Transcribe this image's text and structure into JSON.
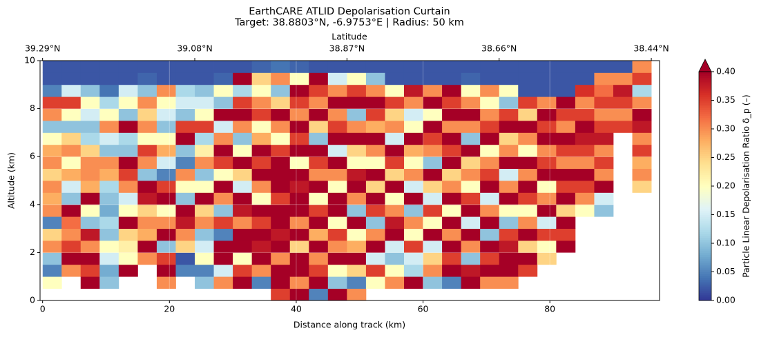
{
  "chart_data": {
    "type": "heatmap",
    "title": "EarthCARE ATLID Depolarisation Curtain",
    "subtitle": "Target: 38.8803°N, -6.9753°E | Radius: 50 km",
    "x_label": "Distance along track (km)",
    "y_label": "Altitude (km)",
    "x2_label": "Latitude",
    "colorbar_label": "Particle Linear Depolarisation Ratio δ_p (–)",
    "xlim": [
      -0.4,
      97.3
    ],
    "ylim": [
      0,
      10
    ],
    "xticks": [
      0,
      20,
      40,
      60,
      80
    ],
    "yticks": [
      0,
      2,
      4,
      6,
      8,
      10
    ],
    "x2ticks": [
      {
        "value": 0,
        "label": "39.29°N"
      },
      {
        "value": 24,
        "label": "39.08°N"
      },
      {
        "value": 48,
        "label": "38.87°N"
      },
      {
        "value": 72,
        "label": "38.66°N"
      },
      {
        "value": 96,
        "label": "38.44°N"
      }
    ],
    "clim": [
      0,
      0.4
    ],
    "cticks": [
      {
        "value": 0,
        "label": "0.00"
      },
      {
        "value": 0.05,
        "label": "0.05"
      },
      {
        "value": 0.1,
        "label": "0.10"
      },
      {
        "value": 0.15,
        "label": "0.15"
      },
      {
        "value": 0.2,
        "label": "0.20"
      },
      {
        "value": 0.25,
        "label": "0.25"
      },
      {
        "value": 0.3,
        "label": "0.30"
      },
      {
        "value": 0.35,
        "label": "0.35"
      },
      {
        "value": 0.4,
        "label": "0.40"
      }
    ],
    "colormap": [
      "#313695",
      "#4575b4",
      "#74add1",
      "#abd9e9",
      "#e0f3f8",
      "#ffffbf",
      "#fee090",
      "#fdae61",
      "#f46d43",
      "#d73027",
      "#a50026"
    ],
    "grid": true,
    "xbins": [
      0,
      3,
      6,
      9,
      12,
      15,
      18,
      21,
      24,
      27,
      30,
      33,
      36,
      39,
      42,
      45,
      48,
      51,
      54,
      57,
      60,
      63,
      66,
      69,
      72,
      75,
      78,
      81,
      84,
      87,
      90,
      93,
      96
    ],
    "ybins": [
      0,
      0.5,
      1,
      1.5,
      2,
      2.5,
      3,
      3.5,
      4,
      4.5,
      5,
      5.5,
      6,
      6.5,
      7,
      7.5,
      8,
      8.5,
      9,
      9.5,
      10
    ],
    "z": [
      [
        null,
        0.2,
        0.05,
        0.1,
        0.3,
        0.25,
        0.05,
        0.3,
        0.28,
        0.3,
        0.25,
        0.3,
        0.28,
        0.2,
        0.1,
        0.3,
        0.35,
        0.05,
        0.02,
        0.02
      ],
      [
        null,
        null,
        0.3,
        0.4,
        0.35,
        0.3,
        0.32,
        0.4,
        0.1,
        0.15,
        0.28,
        0.2,
        0.3,
        0.25,
        0.1,
        0.2,
        0.35,
        0.15,
        0.02,
        0.02
      ],
      [
        null,
        0.4,
        0.35,
        0.4,
        0.3,
        0.38,
        0.1,
        0.2,
        0.4,
        0.28,
        0.3,
        0.3,
        0.25,
        0.12,
        0.1,
        0.15,
        0.2,
        0.1,
        0.02,
        0.02
      ],
      [
        null,
        0.1,
        0.08,
        0.15,
        0.2,
        0.1,
        0.12,
        0.08,
        0.1,
        0.12,
        0.28,
        0.3,
        0.1,
        0.15,
        0.3,
        0.2,
        0.12,
        0.04,
        0.02,
        0.02
      ],
      [
        null,
        null,
        0.4,
        0.2,
        0.22,
        0.25,
        0.4,
        0.2,
        0.15,
        0.3,
        0.35,
        0.4,
        0.1,
        0.12,
        0.4,
        0.1,
        0.2,
        0.15,
        0.02,
        0.02
      ],
      [
        null,
        null,
        null,
        0.3,
        0.4,
        0.28,
        0.3,
        0.25,
        0.38,
        0.4,
        0.1,
        0.3,
        0.35,
        0.2,
        0.3,
        0.25,
        0.3,
        0.1,
        0.03,
        0.02
      ],
      [
        null,
        0.3,
        0.4,
        0.35,
        0.1,
        0.4,
        0.3,
        0.2,
        0.4,
        0.35,
        0.05,
        0.15,
        0.28,
        0.2,
        0.1,
        0.15,
        0.2,
        0.3,
        0.02,
        0.02
      ],
      [
        null,
        null,
        0.05,
        0.02,
        0.25,
        0.3,
        0.38,
        0.4,
        0.1,
        0.2,
        0.3,
        0.05,
        0.1,
        0.4,
        0.35,
        0.1,
        0.15,
        0.12,
        0.02,
        0.02
      ],
      [
        null,
        0.1,
        0.05,
        0.2,
        0.15,
        0.1,
        0.3,
        0.25,
        0.4,
        0.2,
        0.1,
        0.3,
        0.22,
        0.12,
        0.35,
        0.2,
        0.15,
        0.1,
        0.02,
        0.02
      ],
      [
        null,
        0.3,
        0.15,
        0.4,
        0.4,
        0.05,
        0.35,
        0.1,
        0.3,
        0.4,
        0.2,
        0.35,
        0.4,
        0.3,
        0.15,
        0.4,
        0.1,
        0.2,
        0.03,
        0.02
      ],
      [
        null,
        0.4,
        0.35,
        0.2,
        0.4,
        0.4,
        0.3,
        0.38,
        0.4,
        0.15,
        0.25,
        0.4,
        0.2,
        0.1,
        0.3,
        0.4,
        0.35,
        0.12,
        0.4,
        0.02
      ],
      [
        null,
        0.05,
        0.3,
        0.4,
        0.38,
        0.4,
        0.35,
        0.4,
        0.2,
        0.3,
        0.4,
        0.35,
        0.4,
        0.28,
        0.2,
        0.35,
        0.3,
        0.2,
        0.25,
        0.03
      ],
      [
        0.35,
        0.4,
        0.4,
        0.3,
        0.4,
        0.38,
        0.4,
        0.4,
        0.35,
        0.4,
        0.4,
        0.4,
        0.35,
        0.2,
        0.3,
        0.4,
        0.25,
        0.1,
        0.3,
        0.04
      ],
      [
        0.4,
        0.3,
        0.4,
        0.4,
        0.25,
        0.4,
        0.3,
        0.4,
        0.4,
        0.38,
        0.4,
        0.2,
        0.4,
        0.35,
        0.4,
        0.3,
        0.35,
        0.4,
        0.2,
        0.03
      ],
      [
        0.05,
        0.4,
        0.35,
        0.3,
        0.4,
        0.28,
        0.4,
        0.35,
        0.2,
        0.4,
        0.3,
        0.35,
        0.4,
        0.1,
        0.25,
        0.4,
        0.3,
        0.35,
        0.4,
        0.02
      ],
      [
        0.4,
        0.1,
        0.2,
        0.4,
        0.3,
        0.35,
        0.2,
        0.4,
        0.4,
        0.2,
        0.3,
        0.4,
        0.15,
        0.4,
        0.35,
        0.3,
        0.4,
        0.3,
        0.15,
        0.02
      ],
      [
        0.3,
        0.05,
        0.25,
        0.4,
        0.28,
        0.2,
        0.4,
        0.1,
        0.3,
        0.4,
        0.38,
        0.2,
        0.25,
        0.4,
        0.3,
        0.1,
        0.4,
        0.35,
        0.2,
        0.02
      ],
      [
        null,
        0.2,
        0.35,
        0.15,
        0.4,
        0.3,
        0.1,
        0.35,
        0.4,
        0.25,
        0.4,
        0.2,
        0.3,
        0.4,
        0.28,
        0.35,
        0.4,
        0.3,
        0.1,
        0.02
      ],
      [
        null,
        0.3,
        0.2,
        0.1,
        0.15,
        0.4,
        0.38,
        0.3,
        0.2,
        0.4,
        0.25,
        0.35,
        0.4,
        0.15,
        0.3,
        0.25,
        0.35,
        0.2,
        0.02,
        0.02
      ],
      [
        null,
        0.4,
        0.12,
        0.15,
        0.35,
        0.2,
        0.3,
        0.1,
        0.4,
        0.15,
        0.3,
        0.2,
        0.28,
        0.4,
        0.2,
        0.15,
        0.3,
        0.38,
        0.02,
        0.02
      ],
      [
        null,
        0.1,
        0.3,
        0.25,
        0.15,
        0.4,
        0.2,
        0.35,
        0.15,
        0.25,
        0.4,
        0.1,
        0.3,
        0.35,
        0.4,
        0.2,
        0.4,
        0.3,
        0.02,
        0.02
      ],
      [
        null,
        0.05,
        0.4,
        0.35,
        0.4,
        0.3,
        0.4,
        0.2,
        0.4,
        0.3,
        0.25,
        0.4,
        0.35,
        0.4,
        0.3,
        0.4,
        0.35,
        0.4,
        0.02,
        0.02
      ],
      [
        null,
        0.4,
        0.38,
        0.1,
        0.3,
        0.4,
        0.15,
        0.4,
        0.35,
        0.2,
        0.3,
        0.25,
        0.4,
        0.1,
        0.3,
        0.4,
        0.3,
        0.2,
        0.03,
        0.02
      ],
      [
        null,
        0.3,
        0.4,
        0.35,
        0.4,
        0.1,
        0.4,
        0.3,
        0.15,
        0.4,
        0.35,
        0.3,
        0.2,
        0.4,
        0.35,
        0.3,
        0.2,
        0.3,
        0.02,
        0.02
      ],
      [
        null,
        0.3,
        0.4,
        0.4,
        0.38,
        0.35,
        0.1,
        0.2,
        0.4,
        0.3,
        0.15,
        0.4,
        0.3,
        0.25,
        0.4,
        0.35,
        0.1,
        0.2,
        0.02,
        0.02
      ],
      [
        null,
        null,
        0.35,
        0.4,
        0.25,
        0.4,
        0.3,
        0.2,
        0.35,
        0.4,
        0.3,
        0.4,
        0.2,
        0.3,
        0.4,
        0.25,
        0.35,
        0.02,
        0.02,
        0.02
      ],
      [
        null,
        null,
        null,
        0.25,
        0.2,
        0.35,
        0.15,
        0.4,
        0.3,
        0.2,
        0.4,
        0.35,
        0.3,
        0.4,
        0.35,
        0.4,
        0.3,
        0.02,
        0.02,
        0.02
      ],
      [
        null,
        null,
        null,
        null,
        0.4,
        0.35,
        0.4,
        0.25,
        0.4,
        0.35,
        0.4,
        0.3,
        0.35,
        0.4,
        0.3,
        0.35,
        0.4,
        0.02,
        0.02,
        0.02
      ],
      [
        null,
        null,
        null,
        null,
        null,
        null,
        null,
        0.2,
        0.3,
        0.35,
        0.4,
        0.3,
        0.35,
        0.38,
        0.4,
        0.35,
        0.3,
        0.36,
        0.02,
        0.02
      ],
      [
        null,
        null,
        null,
        null,
        null,
        null,
        null,
        0.1,
        0.15,
        0.4,
        0.3,
        0.35,
        0.3,
        0.38,
        0.35,
        0.3,
        0.35,
        0.32,
        0.3,
        0.02
      ],
      [
        null,
        null,
        null,
        null,
        null,
        null,
        null,
        null,
        null,
        null,
        null,
        null,
        null,
        null,
        0.35,
        0.3,
        0.35,
        0.38,
        0.3,
        0.02
      ],
      [
        null,
        null,
        null,
        null,
        null,
        null,
        null,
        null,
        null,
        0.25,
        0.3,
        0.28,
        0.35,
        0.3,
        0.38,
        0.4,
        0.3,
        0.12,
        0.35,
        0.3
      ]
    ]
  }
}
